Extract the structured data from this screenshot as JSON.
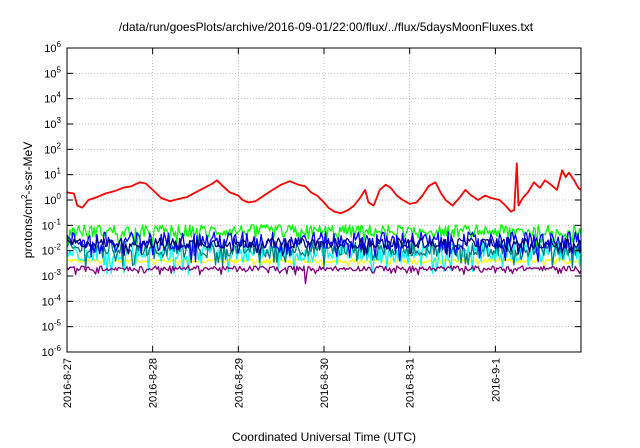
{
  "chart_data": {
    "type": "line",
    "title": "/data/run/goesPlots/archive/2016-09-01/22:00/flux/../flux/5daysMoonFluxes.txt",
    "xlabel": "Coordinated Universal Time (UTC)",
    "ylabel_main": "protons/cm",
    "ylabel_sup": "2",
    "ylabel_rest": "-s-sr-MeV",
    "y_scale": "log",
    "ylim": [
      1e-06,
      1000000.0
    ],
    "xlim_days": [
      0,
      6
    ],
    "x_ticks": [
      "2016-8-27",
      "2016-8-28",
      "2016-8-29",
      "2016-8-30",
      "2016-8-31",
      "2016-9-1"
    ],
    "y_ticks": [
      {
        "base": "10",
        "exp": "6"
      },
      {
        "base": "10",
        "exp": "5"
      },
      {
        "base": "10",
        "exp": "4"
      },
      {
        "base": "10",
        "exp": "3"
      },
      {
        "base": "10",
        "exp": "2"
      },
      {
        "base": "10",
        "exp": "1"
      },
      {
        "base": "10",
        "exp": "0"
      },
      {
        "base": "10",
        "exp": "-1"
      },
      {
        "base": "10",
        "exp": "-2"
      },
      {
        "base": "10",
        "exp": "-3"
      },
      {
        "base": "10",
        "exp": "-4"
      },
      {
        "base": "10",
        "exp": "-5"
      },
      {
        "base": "10",
        "exp": "-6"
      }
    ],
    "grid": true,
    "series": [
      {
        "color": "#ffff00",
        "base": 0.004,
        "noise": 0.08
      },
      {
        "color": "#00ffff",
        "base": 0.009,
        "noise": 0.35
      },
      {
        "color": "#008080",
        "base": 0.012,
        "noise": 0.3
      },
      {
        "color": "#00ff00",
        "base": 0.06,
        "noise": 0.25
      },
      {
        "color": "#0000ff",
        "base": 0.025,
        "noise": 0.35
      },
      {
        "color": "#000080",
        "base": 0.02,
        "noise": 0.2
      },
      {
        "color": "#800080",
        "base": 0.002,
        "noise": 0.1
      },
      {
        "color": "#ff0000",
        "points": [
          [
            0.0,
            2.0
          ],
          [
            0.08,
            1.8
          ],
          [
            0.12,
            0.6
          ],
          [
            0.18,
            0.5
          ],
          [
            0.25,
            1.0
          ],
          [
            0.35,
            1.3
          ],
          [
            0.45,
            1.8
          ],
          [
            0.55,
            2.2
          ],
          [
            0.65,
            3.0
          ],
          [
            0.75,
            3.5
          ],
          [
            0.85,
            5.0
          ],
          [
            0.92,
            4.5
          ],
          [
            1.0,
            2.5
          ],
          [
            1.1,
            1.2
          ],
          [
            1.2,
            0.9
          ],
          [
            1.3,
            1.1
          ],
          [
            1.4,
            1.3
          ],
          [
            1.5,
            2.0
          ],
          [
            1.6,
            3.0
          ],
          [
            1.7,
            4.5
          ],
          [
            1.75,
            6.0
          ],
          [
            1.82,
            3.5
          ],
          [
            1.9,
            2.0
          ],
          [
            2.0,
            1.5
          ],
          [
            2.05,
            1.0
          ],
          [
            2.12,
            0.8
          ],
          [
            2.2,
            0.9
          ],
          [
            2.3,
            1.5
          ],
          [
            2.4,
            2.5
          ],
          [
            2.5,
            4.0
          ],
          [
            2.6,
            5.5
          ],
          [
            2.7,
            4.0
          ],
          [
            2.78,
            3.5
          ],
          [
            2.85,
            2.0
          ],
          [
            2.92,
            1.5
          ],
          [
            3.0,
            0.8
          ],
          [
            3.05,
            0.5
          ],
          [
            3.12,
            0.35
          ],
          [
            3.2,
            0.3
          ],
          [
            3.28,
            0.4
          ],
          [
            3.35,
            0.6
          ],
          [
            3.42,
            1.2
          ],
          [
            3.48,
            2.5
          ],
          [
            3.52,
            0.8
          ],
          [
            3.58,
            0.6
          ],
          [
            3.65,
            2.5
          ],
          [
            3.72,
            4.0
          ],
          [
            3.78,
            3.0
          ],
          [
            3.85,
            1.5
          ],
          [
            3.92,
            1.0
          ],
          [
            4.0,
            0.7
          ],
          [
            4.08,
            0.8
          ],
          [
            4.15,
            1.5
          ],
          [
            4.22,
            3.5
          ],
          [
            4.3,
            5.0
          ],
          [
            4.36,
            2.0
          ],
          [
            4.42,
            1.0
          ],
          [
            4.5,
            0.6
          ],
          [
            4.58,
            1.2
          ],
          [
            4.65,
            2.5
          ],
          [
            4.72,
            1.5
          ],
          [
            4.8,
            1.0
          ],
          [
            4.88,
            1.5
          ],
          [
            4.95,
            1.2
          ],
          [
            5.05,
            1.0
          ],
          [
            5.12,
            0.6
          ],
          [
            5.18,
            0.35
          ],
          [
            5.22,
            0.4
          ],
          [
            5.25,
            28.0
          ],
          [
            5.27,
            0.6
          ],
          [
            5.32,
            1.2
          ],
          [
            5.38,
            2.0
          ],
          [
            5.45,
            5.0
          ],
          [
            5.52,
            3.0
          ],
          [
            5.58,
            6.0
          ],
          [
            5.65,
            4.0
          ],
          [
            5.72,
            2.5
          ],
          [
            5.78,
            15.0
          ],
          [
            5.82,
            8.0
          ],
          [
            5.86,
            12.0
          ],
          [
            5.92,
            6.0
          ],
          [
            5.97,
            3.0
          ],
          [
            6.0,
            2.5
          ]
        ]
      }
    ]
  }
}
